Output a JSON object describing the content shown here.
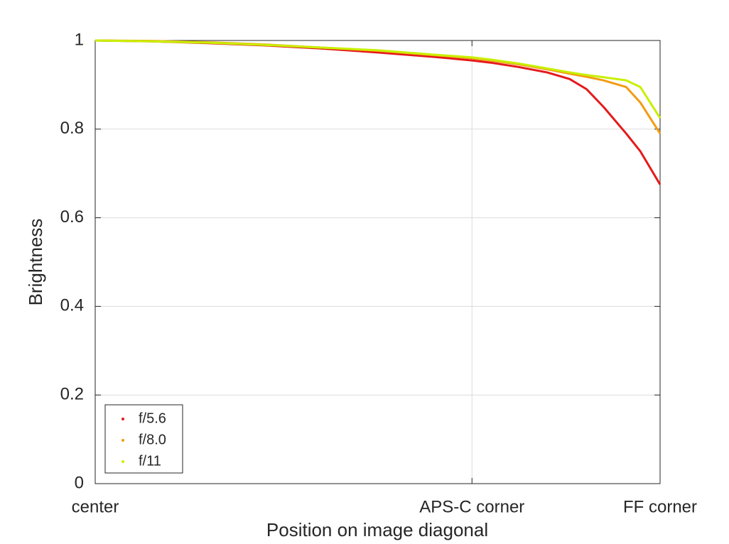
{
  "chart_data": {
    "type": "line",
    "xlabel": "Position on image diagonal",
    "ylabel": "Brightness",
    "x": [
      0,
      0.1,
      0.2,
      0.3,
      0.4,
      0.5,
      0.6,
      0.667,
      0.7,
      0.75,
      0.8,
      0.84,
      0.87,
      0.9,
      0.94,
      0.965,
      1.0
    ],
    "series": [
      {
        "name": "f/5.6",
        "color": "#e41a1c",
        "values": [
          1.0,
          0.998,
          0.994,
          0.989,
          0.982,
          0.973,
          0.963,
          0.955,
          0.95,
          0.94,
          0.928,
          0.913,
          0.89,
          0.85,
          0.79,
          0.75,
          0.675
        ]
      },
      {
        "name": "f/8.0",
        "color": "#f39c12",
        "values": [
          1.0,
          0.999,
          0.996,
          0.991,
          0.984,
          0.977,
          0.967,
          0.96,
          0.955,
          0.946,
          0.935,
          0.925,
          0.918,
          0.91,
          0.895,
          0.86,
          0.79
        ]
      },
      {
        "name": "f/11",
        "color": "#c8f000",
        "values": [
          1.0,
          0.998,
          0.995,
          0.99,
          0.984,
          0.978,
          0.968,
          0.962,
          0.957,
          0.948,
          0.937,
          0.928,
          0.922,
          0.917,
          0.91,
          0.895,
          0.825
        ]
      }
    ],
    "xlim": [
      0,
      1
    ],
    "xticks": [
      {
        "value": 0,
        "label": "center"
      },
      {
        "value": 0.667,
        "label": "APS-C corner"
      },
      {
        "value": 1,
        "label": "FF corner"
      }
    ],
    "ylim": [
      0,
      1
    ],
    "yticks": [
      0,
      0.2,
      0.4,
      0.6,
      0.8,
      1
    ],
    "grid": true,
    "legend": "lower-left"
  }
}
